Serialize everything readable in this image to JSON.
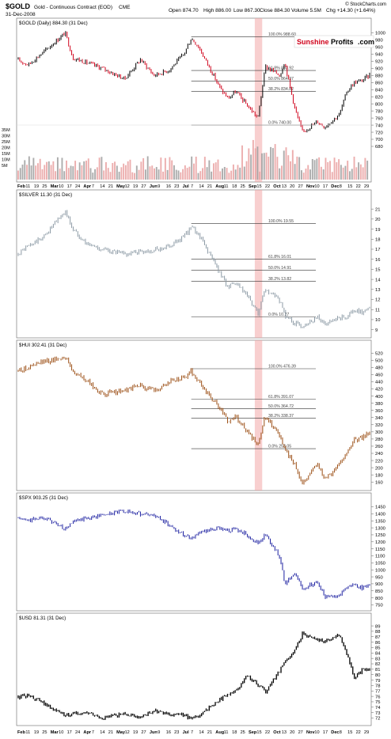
{
  "header": {
    "symbol": "$GOLD",
    "name": "Gold - Continuous Contract (EOD)",
    "exchange": "CME",
    "date": "31-Dec-2008",
    "open": "Open 874.70",
    "high": "High 886.00",
    "low": "Low 867.30",
    "close": "Close 884.30",
    "volume": "Volume 5.5M",
    "change": "Chg +14.30 (+1.64%)",
    "watermark": "© StockCharts.com"
  },
  "brand": {
    "left": "Sunshine",
    "right": "Profits",
    "suffix": ".com"
  },
  "colors": {
    "up": "#000000",
    "down": "#d0021b",
    "silver": "#8c9aa5",
    "hui": "#9b4e14",
    "spx": "#1b1fa0",
    "usd": "#000000",
    "highlight": "#f2a8a8",
    "volume": "#e9a0a0",
    "volume_gray": "#9e9e9e"
  },
  "x_axis": {
    "top": [
      "Feb",
      "11",
      "19",
      "25",
      "Mar",
      "10",
      "17",
      "24",
      "Apr",
      "7",
      "14",
      "21",
      "May",
      "12",
      "19",
      "27",
      "Jun",
      "9",
      "16",
      "23",
      "Jul",
      "7",
      "14",
      "21",
      "Aug",
      "11",
      "18",
      "25",
      "Sep",
      "15",
      "22",
      "Oct",
      "13",
      "20",
      "27",
      "Nov",
      "10",
      "17",
      "Dec",
      "8",
      "15",
      "22",
      "29"
    ],
    "bottom": [
      "Feb",
      "11",
      "19",
      "25",
      "Mar",
      "10",
      "17",
      "24",
      "Apr",
      "7",
      "14",
      "21",
      "May",
      "12",
      "19",
      "27",
      "Jun",
      "9",
      "16",
      "23",
      "Jul",
      "7",
      "14",
      "21",
      "Aug",
      "11",
      "18",
      "25",
      "Sep",
      "15",
      "22",
      "Oct",
      "13",
      "20",
      "27",
      "Nov",
      "10",
      "17",
      "Dec",
      "8",
      "15",
      "22",
      "29"
    ]
  },
  "chart_data": [
    {
      "type": "line",
      "title": "$GOLD (Daily) 884.30 (31 Dec)",
      "ylim": [
        680,
        1010
      ],
      "y_ticks": [
        680,
        700,
        720,
        740,
        760,
        780,
        800,
        820,
        840,
        860,
        880,
        900,
        920,
        940,
        960,
        980,
        1000
      ],
      "volume_ticks": [
        "35M",
        "30M",
        "25M",
        "20M",
        "15M",
        "10M",
        "5M"
      ],
      "series": [
        {
          "x": [
            "2008-01-31",
            "2008-02-11",
            "2008-02-25",
            "2008-03-17",
            "2008-03-24",
            "2008-04-07",
            "2008-04-21",
            "2008-05-12",
            "2008-05-27",
            "2008-06-09",
            "2008-06-23",
            "2008-07-07",
            "2008-07-14",
            "2008-07-21",
            "2008-08-11",
            "2008-08-18",
            "2008-08-25",
            "2008-09-05",
            "2008-09-15",
            "2008-09-22",
            "2008-10-06",
            "2008-10-10",
            "2008-10-20",
            "2008-10-27",
            "2008-11-10",
            "2008-11-17",
            "2008-12-01",
            "2008-12-08",
            "2008-12-15",
            "2008-12-22",
            "2008-12-31"
          ],
          "values": [
            925,
            910,
            945,
            1000,
            930,
            915,
            900,
            870,
            925,
            880,
            895,
            940,
            985,
            960,
            840,
            815,
            835,
            795,
            760,
            905,
            880,
            920,
            785,
            720,
            750,
            735,
            770,
            835,
            860,
            865,
            884.3
          ]
        }
      ],
      "fib_levels": [
        {
          "label": "100.0% 988.60",
          "value": 988.6
        },
        {
          "label": "61.8% 893.92",
          "value": 893.92
        },
        {
          "label": "50.0% 864.37",
          "value": 864.37
        },
        {
          "label": "38.2% 834.82",
          "value": 834.82
        },
        {
          "label": "0.0% 740.00",
          "value": 740.0
        }
      ]
    },
    {
      "type": "line",
      "title": "$SILVER 11.30 (31 Dec)",
      "ylim": [
        8.5,
        21.8
      ],
      "y_ticks": [
        9,
        10,
        11,
        12,
        13,
        14,
        15,
        16,
        17,
        18,
        19,
        20,
        21
      ],
      "series": [
        {
          "x": [
            "2008-01-31",
            "2008-02-11",
            "2008-02-25",
            "2008-03-17",
            "2008-03-24",
            "2008-04-07",
            "2008-04-21",
            "2008-05-12",
            "2008-05-27",
            "2008-06-09",
            "2008-06-23",
            "2008-07-07",
            "2008-07-14",
            "2008-07-21",
            "2008-08-11",
            "2008-08-18",
            "2008-08-25",
            "2008-09-05",
            "2008-09-15",
            "2008-09-22",
            "2008-10-06",
            "2008-10-10",
            "2008-10-20",
            "2008-10-27",
            "2008-11-10",
            "2008-11-17",
            "2008-12-01",
            "2008-12-08",
            "2008-12-15",
            "2008-12-22",
            "2008-12-31"
          ],
          "values": [
            16.5,
            17.3,
            18.2,
            20.8,
            19.0,
            17.5,
            17.0,
            16.5,
            16.8,
            16.9,
            17.3,
            18.2,
            19.2,
            18.5,
            14.5,
            13.2,
            13.6,
            12.3,
            10.5,
            13.0,
            11.8,
            10.5,
            9.6,
            9.4,
            10.3,
            9.5,
            10.1,
            10.3,
            10.9,
            10.7,
            11.3
          ]
        }
      ],
      "fib_levels": [
        {
          "label": "100.0% 19.55",
          "value": 19.55
        },
        {
          "label": "61.8% 16.01",
          "value": 16.01
        },
        {
          "label": "50.0% 14.91",
          "value": 14.91
        },
        {
          "label": "38.2% 13.82",
          "value": 13.82
        },
        {
          "label": "0.0% 10.27",
          "value": 10.27
        }
      ]
    },
    {
      "type": "line",
      "title": "$HUI 302.41 (31 Dec)",
      "ylim": [
        145,
        525
      ],
      "y_ticks": [
        160,
        180,
        200,
        220,
        240,
        260,
        280,
        300,
        320,
        340,
        360,
        380,
        400,
        420,
        440,
        460,
        480,
        500,
        520
      ],
      "series": [
        {
          "x": [
            "2008-01-31",
            "2008-02-11",
            "2008-02-25",
            "2008-03-17",
            "2008-03-24",
            "2008-04-07",
            "2008-04-21",
            "2008-05-12",
            "2008-05-27",
            "2008-06-09",
            "2008-06-23",
            "2008-07-07",
            "2008-07-14",
            "2008-07-21",
            "2008-08-11",
            "2008-08-18",
            "2008-08-25",
            "2008-09-05",
            "2008-09-15",
            "2008-09-22",
            "2008-10-06",
            "2008-10-10",
            "2008-10-20",
            "2008-10-27",
            "2008-11-10",
            "2008-11-17",
            "2008-12-01",
            "2008-12-08",
            "2008-12-15",
            "2008-12-22",
            "2008-12-31"
          ],
          "values": [
            470,
            480,
            495,
            510,
            470,
            440,
            405,
            415,
            430,
            415,
            440,
            450,
            470,
            440,
            360,
            330,
            345,
            300,
            260,
            345,
            290,
            250,
            210,
            155,
            215,
            165,
            210,
            245,
            275,
            285,
            302.41
          ]
        }
      ],
      "fib_levels": [
        {
          "label": "100.0% 476.39",
          "value": 476.39
        },
        {
          "label": "61.8% 391.07",
          "value": 391.07
        },
        {
          "label": "50.0% 364.72",
          "value": 364.72
        },
        {
          "label": "38.2% 338.37",
          "value": 338.37
        },
        {
          "label": "0.0% 253.05",
          "value": 253.05
        }
      ]
    },
    {
      "type": "line",
      "title": "$SPX 903.25 (31 Dec)",
      "ylim": [
        730,
        1470
      ],
      "y_ticks": [
        750,
        800,
        850,
        900,
        950,
        1000,
        1050,
        1100,
        1150,
        1200,
        1250,
        1300,
        1350,
        1400,
        1450
      ],
      "series": [
        {
          "x": [
            "2008-01-31",
            "2008-02-11",
            "2008-02-25",
            "2008-03-17",
            "2008-03-24",
            "2008-04-07",
            "2008-04-21",
            "2008-05-12",
            "2008-05-27",
            "2008-06-09",
            "2008-06-23",
            "2008-07-07",
            "2008-07-14",
            "2008-07-21",
            "2008-08-11",
            "2008-08-18",
            "2008-08-25",
            "2008-09-05",
            "2008-09-15",
            "2008-09-22",
            "2008-10-06",
            "2008-10-10",
            "2008-10-20",
            "2008-10-27",
            "2008-11-10",
            "2008-11-17",
            "2008-12-01",
            "2008-12-08",
            "2008-12-15",
            "2008-12-22",
            "2008-12-31"
          ],
          "values": [
            1370,
            1350,
            1380,
            1290,
            1340,
            1370,
            1390,
            1420,
            1400,
            1390,
            1320,
            1250,
            1230,
            1260,
            1300,
            1280,
            1290,
            1250,
            1190,
            1250,
            1090,
            900,
            980,
            860,
            920,
            810,
            820,
            880,
            890,
            870,
            903.25
          ]
        }
      ]
    },
    {
      "type": "line",
      "title": "$USD 81.31 (31 Dec)",
      "ylim": [
        71.2,
        89.3
      ],
      "y_ticks": [
        72,
        73,
        74,
        75,
        76,
        77,
        78,
        79,
        80,
        81,
        82,
        83,
        84,
        85,
        86,
        87,
        88,
        89
      ],
      "series": [
        {
          "x": [
            "2008-01-31",
            "2008-02-11",
            "2008-02-25",
            "2008-03-17",
            "2008-03-24",
            "2008-04-07",
            "2008-04-21",
            "2008-05-12",
            "2008-05-27",
            "2008-06-09",
            "2008-06-23",
            "2008-07-07",
            "2008-07-14",
            "2008-07-21",
            "2008-08-11",
            "2008-08-18",
            "2008-08-25",
            "2008-09-05",
            "2008-09-15",
            "2008-09-22",
            "2008-10-06",
            "2008-10-10",
            "2008-10-20",
            "2008-10-27",
            "2008-11-10",
            "2008-11-17",
            "2008-12-01",
            "2008-12-08",
            "2008-12-15",
            "2008-12-22",
            "2008-12-31"
          ],
          "values": [
            75.8,
            76.2,
            74.8,
            72.4,
            72.8,
            72.9,
            71.9,
            72.8,
            72.2,
            73.3,
            72.6,
            72.6,
            71.8,
            72.5,
            75.6,
            76.5,
            76.9,
            79.8,
            78.2,
            76.8,
            80.9,
            82.2,
            84.5,
            87.5,
            86.5,
            86.2,
            87.3,
            84.0,
            79.5,
            80.8,
            81.31
          ]
        }
      ]
    }
  ]
}
